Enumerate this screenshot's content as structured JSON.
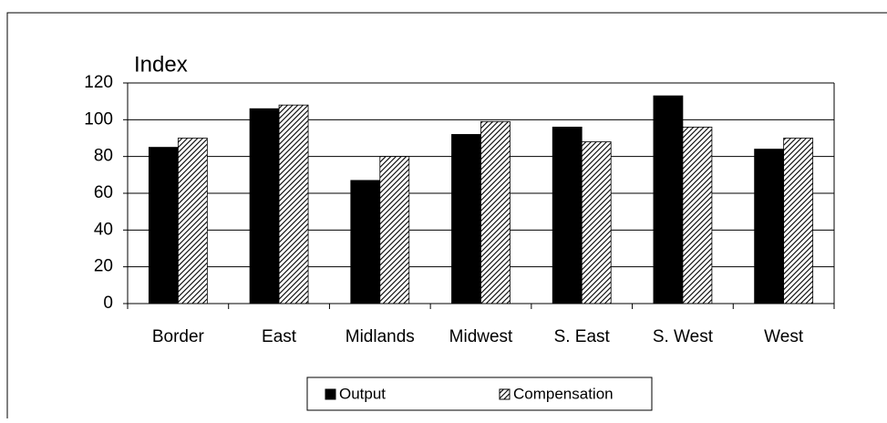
{
  "chart_data": {
    "type": "bar",
    "title": "Index",
    "categories": [
      "Border",
      "East",
      "Midlands",
      "Midwest",
      "S. East",
      "S. West",
      "West"
    ],
    "series": [
      {
        "name": "Output",
        "color": "#000000",
        "values": [
          85,
          106,
          67,
          92,
          96,
          113,
          84
        ]
      },
      {
        "name": "Compensation",
        "color": "#000000",
        "hatch": true,
        "values": [
          90,
          108,
          80,
          99,
          88,
          96,
          90
        ]
      }
    ],
    "ylim": [
      0,
      120
    ],
    "yticks": [
      0,
      20,
      40,
      60,
      80,
      100,
      120
    ],
    "grid": true,
    "legend": "bottom"
  }
}
